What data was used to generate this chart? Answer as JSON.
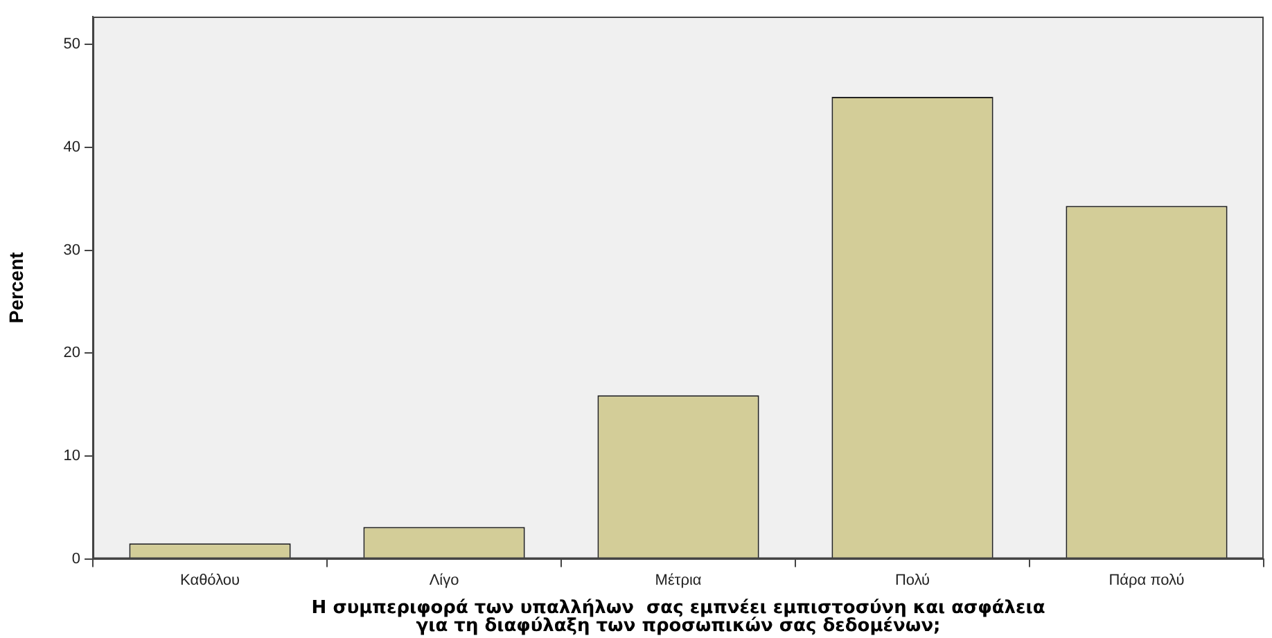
{
  "chart_data": {
    "type": "bar",
    "xlabel": "Η συμπεριφορά των υπαλλήλων  σας εμπνέει εμπιστοσύνη και ασφάλεια\nγια τη διαφύλαξη των προσωπικών σας δεδομένων;",
    "ylabel": "Percent",
    "categories": [
      "Καθόλου",
      "Λίγο",
      "Μέτρια",
      "Πολύ",
      "Πάρα πολύ"
    ],
    "values": [
      1.5,
      3.1,
      15.9,
      44.9,
      34.3
    ],
    "color": "#d3cd98",
    "ylim": [
      0,
      52.7
    ],
    "yticks": [
      0,
      10,
      20,
      30,
      40,
      50
    ],
    "grid": false,
    "legend": false
  }
}
